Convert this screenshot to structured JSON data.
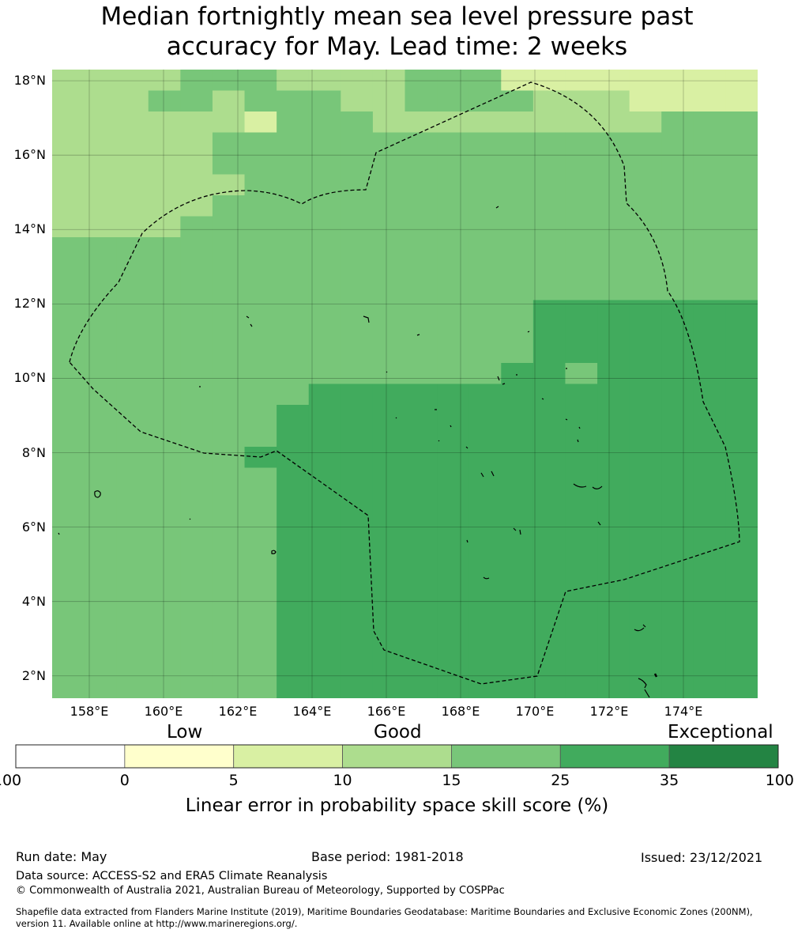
{
  "title": {
    "line1": "Median fortnightly mean sea level pressure past",
    "line2": "accuracy for May. Lead time: 2 weeks"
  },
  "map": {
    "lon_range": [
      157,
      176
    ],
    "lat_range": [
      1.4,
      18.3
    ],
    "y_ticks": [
      "18°N",
      "16°N",
      "14°N",
      "12°N",
      "10°N",
      "8°N",
      "6°N",
      "4°N",
      "2°N"
    ],
    "y_tick_values": [
      18,
      16,
      14,
      12,
      10,
      8,
      6,
      4,
      2
    ],
    "x_ticks": [
      "158°E",
      "160°E",
      "162°E",
      "164°E",
      "166°E",
      "168°E",
      "170°E",
      "172°E",
      "174°E"
    ],
    "x_tick_values": [
      158,
      160,
      162,
      164,
      166,
      168,
      170,
      172,
      174
    ],
    "grid": "on",
    "boundary_style": "dashed",
    "skill_rows": [
      "3333444333344422222222",
      "3334434443344443332222",
      "3333332444333333333444",
      "3333344444444444444444",
      "3333344444444444444444",
      "3333334444444444444444",
      "3333344444444444444444",
      "3333444444444444444444",
      "4444444444444444444444",
      "4444444444444444444444",
      "4444444444444444444444",
      "4444444444444445555555",
      "4444444444444445555555",
      "4444444444444445555555",
      "4444444444444455455555",
      "4444444455555555555555",
      "4444444555555555555555",
      "4444444555555555555555",
      "4444445555555555555555",
      "4444444555555555555555",
      "4444444555555555555555",
      "4444444555555555555555",
      "4444444555555555555555",
      "4444444555555555555555",
      "4444444555555555555555",
      "4444444555555555555555",
      "4444444555555555555555",
      "4444444555555555555555",
      "4444444555555555555555",
      "4444444555555555555555"
    ],
    "colors": {
      "level_0": "#ffffff",
      "level_1": "#ffffcc",
      "level_2": "#d9f0a3",
      "level_3": "#addd8e",
      "level_4": "#78c679",
      "level_5": "#41ab5d",
      "level_6": "#238443"
    }
  },
  "categories": {
    "low": "Low",
    "good": "Good",
    "exceptional": "Exceptional"
  },
  "colorbar": {
    "ticks": [
      "-100",
      "0",
      "5",
      "10",
      "15",
      "25",
      "35",
      "100"
    ],
    "colors": [
      "#ffffff",
      "#ffffcc",
      "#d9f0a3",
      "#addd8e",
      "#78c679",
      "#41ab5d",
      "#238443"
    ],
    "label": "Linear error in probability space skill score (%)"
  },
  "footer": {
    "run_date": "Run date: May",
    "base_period": "Base period: 1981-2018",
    "issued": "Issued: 23/12/2021",
    "data_source": "Data source: ACCESS-S2 and ERA5 Climate Reanalysis",
    "copyright": "© Commonwealth of Australia 2021, Australian Bureau of Meteorology, Supported by COSPPac",
    "shapefile_line1": "Shapefile data extracted from Flanders Marine Institute (2019), Maritime Boundaries Geodatabase: Maritime Boundaries and Exclusive Economic Zones (200NM),",
    "shapefile_line2": "version 11. Available online at http://www.marineregions.org/."
  }
}
